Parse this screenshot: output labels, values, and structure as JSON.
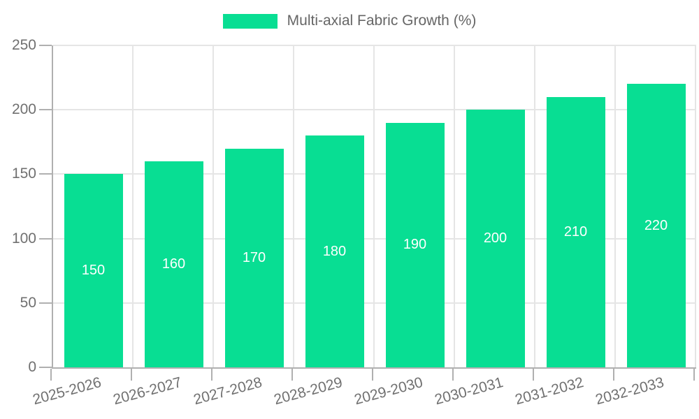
{
  "chart_data": {
    "type": "bar",
    "legend": "Multi-axial Fabric Growth (%)",
    "categories": [
      "2025-2026",
      "2026-2027",
      "2027-2028",
      "2028-2029",
      "2029-2030",
      "2030-2031",
      "2031-2032",
      "2032-2033"
    ],
    "values": [
      150,
      160,
      170,
      180,
      190,
      200,
      210,
      220
    ],
    "value_labels": [
      "150",
      "160",
      "170",
      "180",
      "190",
      "200",
      "210",
      "220"
    ],
    "ylim": [
      0,
      250
    ],
    "yticks": [
      0,
      50,
      100,
      150,
      200,
      250
    ],
    "ytick_labels": [
      "0",
      "50",
      "100",
      "150",
      "200",
      "250"
    ],
    "grid": "on",
    "legend_position": "top-center",
    "xlabel": "",
    "ylabel": "",
    "bar_color": "#08DE93",
    "grid_color": "#e5e5e5",
    "axis_color": "#b0b0b0",
    "tick_text_color": "#707070",
    "bar_value_text_color": "#ffffff"
  }
}
